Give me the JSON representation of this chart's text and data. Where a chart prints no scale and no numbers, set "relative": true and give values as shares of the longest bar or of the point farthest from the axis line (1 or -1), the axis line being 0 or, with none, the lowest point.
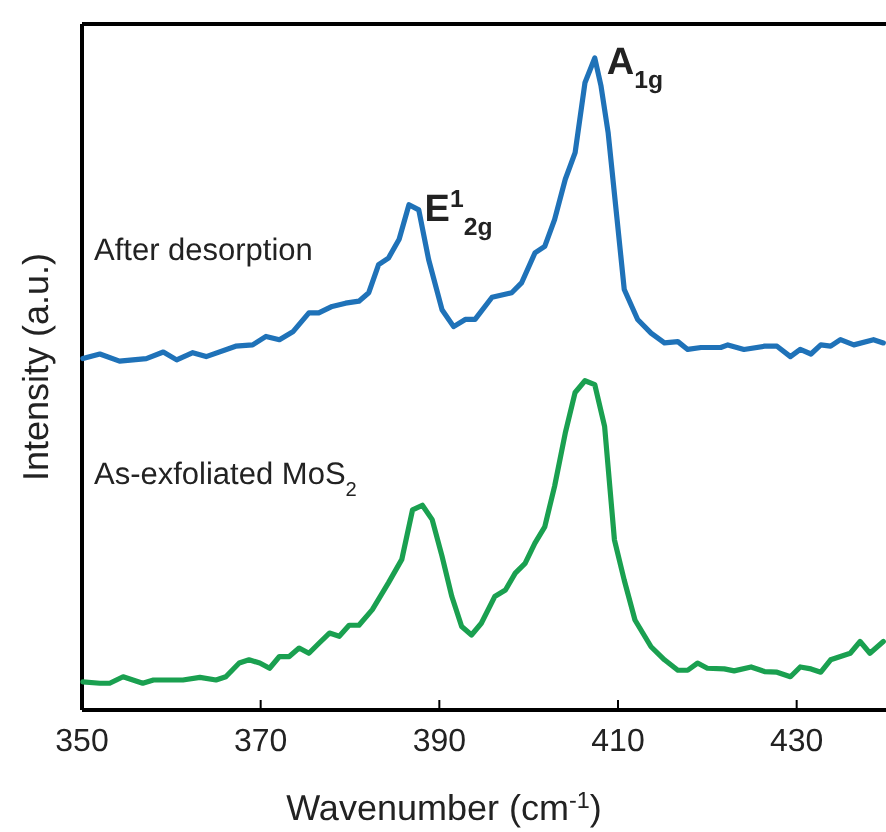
{
  "chart_data": {
    "type": "line",
    "relative": true,
    "xlabel": "Wavenumber (cm$^{-1}$)",
    "ylabel": "Intensity (a.u.)",
    "xlim": [
      350,
      440
    ],
    "xticks": [
      350,
      370,
      390,
      410,
      430
    ],
    "grid": false,
    "legend": false,
    "marker": "none",
    "line_style": "solid",
    "annotations": [
      {
        "text": "E$^{1}$$_{2g}$",
        "x": 387.0,
        "y": 0.775
      },
      {
        "text": "A$_{1g}$",
        "x": 407.4,
        "y": 1.0
      }
    ],
    "series": [
      {
        "name": "After desorption",
        "color": "#1f72b8",
        "x": [
          350.1,
          352.0,
          354.2,
          357.2,
          359.1,
          360.6,
          362.4,
          363.9,
          367.2,
          369.1,
          370.6,
          372.1,
          373.6,
          375.4,
          376.5,
          378.0,
          379.5,
          381.0,
          382.1,
          383.2,
          384.3,
          385.5,
          386.6,
          387.7,
          388.8,
          390.3,
          391.6,
          392.9,
          394.0,
          395.9,
          398.1,
          399.2,
          400.7,
          401.8,
          402.9,
          404.1,
          405.2,
          406.3,
          407.4,
          408.1,
          408.9,
          409.9,
          410.7,
          412.2,
          413.7,
          415.2,
          416.7,
          417.8,
          419.3,
          421.5,
          422.3,
          424.1,
          426.4,
          427.8,
          429.3,
          430.4,
          431.6,
          432.7,
          433.8,
          434.9,
          436.4,
          438.6,
          439.7
        ],
        "values": [
          0.539,
          0.546,
          0.535,
          0.539,
          0.549,
          0.537,
          0.548,
          0.542,
          0.558,
          0.56,
          0.573,
          0.568,
          0.58,
          0.609,
          0.609,
          0.619,
          0.624,
          0.627,
          0.64,
          0.683,
          0.693,
          0.722,
          0.775,
          0.767,
          0.691,
          0.614,
          0.588,
          0.599,
          0.599,
          0.633,
          0.64,
          0.655,
          0.701,
          0.711,
          0.752,
          0.814,
          0.855,
          0.962,
          1.0,
          0.957,
          0.885,
          0.752,
          0.645,
          0.599,
          0.578,
          0.563,
          0.565,
          0.553,
          0.556,
          0.556,
          0.56,
          0.553,
          0.558,
          0.558,
          0.542,
          0.553,
          0.546,
          0.56,
          0.558,
          0.568,
          0.56,
          0.568,
          0.563
        ]
      },
      {
        "name": "As-exfoliated MoS$_{2}$",
        "color": "#1aa050",
        "x": [
          350.1,
          352.0,
          353.1,
          354.6,
          356.8,
          358.0,
          361.3,
          363.2,
          365.0,
          366.1,
          367.6,
          368.7,
          369.9,
          371.0,
          372.1,
          373.2,
          374.3,
          375.4,
          376.5,
          377.7,
          378.8,
          379.9,
          381.0,
          382.5,
          384.3,
          385.8,
          387.0,
          388.1,
          389.2,
          390.3,
          391.4,
          392.5,
          393.6,
          394.7,
          396.2,
          397.4,
          398.5,
          399.6,
          400.7,
          401.8,
          402.9,
          404.1,
          405.2,
          406.3,
          407.4,
          408.5,
          409.6,
          410.7,
          411.9,
          413.7,
          415.2,
          416.7,
          417.8,
          418.9,
          420.0,
          421.9,
          423.0,
          424.9,
          426.4,
          427.8,
          429.3,
          430.4,
          431.6,
          432.7,
          433.8,
          436.0,
          437.1,
          438.2,
          439.7
        ],
        "values": [
          0.043,
          0.041,
          0.041,
          0.051,
          0.041,
          0.046,
          0.046,
          0.05,
          0.046,
          0.051,
          0.072,
          0.077,
          0.072,
          0.064,
          0.082,
          0.082,
          0.095,
          0.087,
          0.102,
          0.118,
          0.113,
          0.13,
          0.13,
          0.154,
          0.195,
          0.231,
          0.307,
          0.314,
          0.292,
          0.236,
          0.174,
          0.128,
          0.115,
          0.133,
          0.174,
          0.184,
          0.21,
          0.225,
          0.256,
          0.281,
          0.343,
          0.425,
          0.487,
          0.505,
          0.499,
          0.435,
          0.261,
          0.199,
          0.138,
          0.097,
          0.077,
          0.061,
          0.061,
          0.072,
          0.064,
          0.063,
          0.06,
          0.066,
          0.059,
          0.058,
          0.051,
          0.066,
          0.063,
          0.058,
          0.077,
          0.087,
          0.105,
          0.087,
          0.105
        ]
      }
    ]
  }
}
